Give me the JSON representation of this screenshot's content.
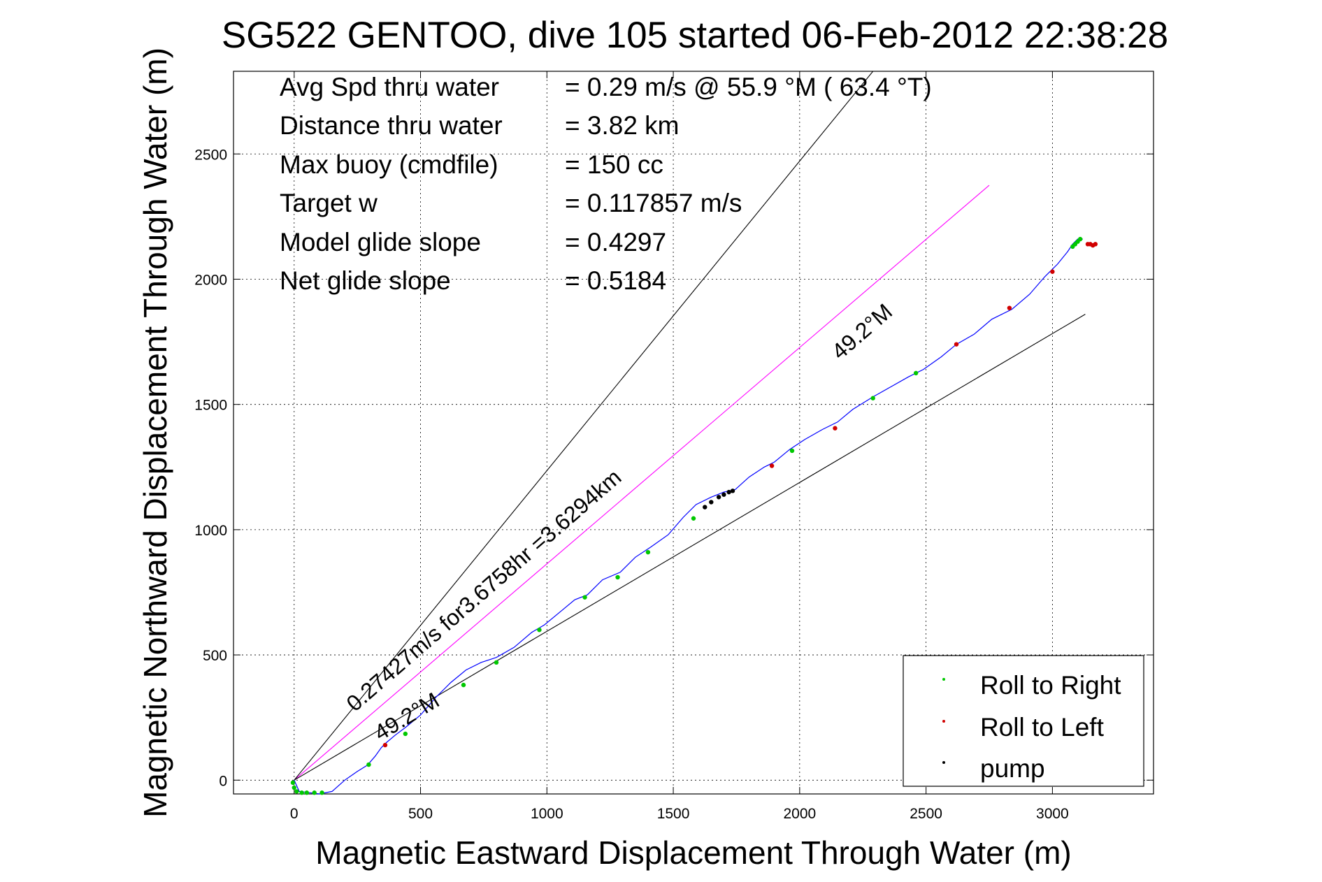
{
  "chart_data": {
    "type": "line",
    "title": "SG522 GENTOO, dive 105 started 06-Feb-2012 22:38:28",
    "xlabel": "Magnetic Eastward Displacement Through Water (m)",
    "ylabel": "Magnetic Northward Displacement Through Water (m)",
    "xlim": [
      -240,
      3400
    ],
    "ylim": [
      -55,
      2830
    ],
    "xticks": [
      0,
      500,
      1000,
      1500,
      2000,
      2500,
      3000
    ],
    "yticks": [
      0,
      500,
      1000,
      1500,
      2000,
      2500
    ],
    "grid": true,
    "info": {
      "labels": [
        "Avg Spd thru water",
        "Distance thru water",
        "Max buoy (cmdfile)",
        "Target w",
        "Model glide slope",
        "Net glide slope"
      ],
      "values": [
        "=  0.29 m/s @  55.9 °M ( 63.4 °T)",
        "=  3.82 km",
        "= 150 cc",
        "= 0.117857 m/s",
        "= 0.4297",
        "= 0.5184"
      ]
    },
    "reference_lines": [
      {
        "name": "heading",
        "color": "#ff00ff",
        "x": [
          0,
          2750
        ],
        "y": [
          0,
          2375
        ]
      },
      {
        "name": "bound-upper",
        "color": "#000000",
        "x": [
          0,
          2290
        ],
        "y": [
          0,
          2830
        ]
      },
      {
        "name": "bound-lower",
        "color": "#000000",
        "x": [
          0,
          3130
        ],
        "y": [
          0,
          1860
        ]
      }
    ],
    "annotations": [
      {
        "text": "0.27427m/s for3.6758hr =3.6294km",
        "x": 240,
        "y": 270,
        "angle": -41
      },
      {
        "text": "49.2°M",
        "x": 340,
        "y": 155,
        "angle": -31
      },
      {
        "text": "49.2°M",
        "x": 2160,
        "y": 1675,
        "angle": -41
      }
    ],
    "track": {
      "color": "#0000ff",
      "x": [
        0,
        20,
        60,
        100,
        150,
        200,
        250,
        290,
        320,
        345,
        365,
        400,
        440,
        500,
        560,
        620,
        680,
        740,
        800,
        870,
        940,
        990,
        1050,
        1110,
        1160,
        1220,
        1290,
        1350,
        1410,
        1480,
        1540,
        1590,
        1650,
        1700,
        1745,
        1800,
        1860,
        1900,
        1960,
        2020,
        2090,
        2150,
        2210,
        2290,
        2360,
        2430,
        2490,
        2560,
        2620,
        2690,
        2760,
        2840,
        2910,
        2970,
        3020,
        3060,
        3080,
        3100,
        3120
      ],
      "y": [
        0,
        -45,
        -50,
        -55,
        -45,
        0,
        35,
        60,
        95,
        130,
        150,
        180,
        210,
        260,
        330,
        390,
        440,
        470,
        490,
        530,
        590,
        620,
        670,
        720,
        740,
        800,
        830,
        890,
        930,
        980,
        1050,
        1100,
        1130,
        1150,
        1160,
        1210,
        1250,
        1270,
        1320,
        1360,
        1400,
        1430,
        1480,
        1530,
        1570,
        1610,
        1640,
        1690,
        1740,
        1780,
        1840,
        1880,
        1940,
        2010,
        2060,
        2110,
        2140,
        2160,
        2160
      ]
    },
    "series": [
      {
        "name": "Roll to Right",
        "color": "#00c800",
        "x": [
          -5,
          0,
          10,
          30,
          50,
          80,
          110,
          295,
          440,
          670,
          800,
          970,
          1150,
          1280,
          1400,
          1580,
          1970,
          2290,
          2460,
          3080,
          3090,
          3100,
          3110
        ],
        "y": [
          -10,
          -30,
          -45,
          -50,
          -50,
          -50,
          -50,
          62,
          185,
          380,
          470,
          600,
          730,
          810,
          910,
          1045,
          1315,
          1525,
          1625,
          2130,
          2140,
          2150,
          2160
        ]
      },
      {
        "name": "Roll to Left",
        "color": "#d10000",
        "x": [
          360,
          1890,
          2140,
          2620,
          2830,
          3000,
          3140,
          3150,
          3160,
          3170
        ],
        "y": [
          140,
          1255,
          1405,
          1740,
          1885,
          2030,
          2140,
          2140,
          2135,
          2140
        ]
      },
      {
        "name": "pump",
        "color": "#000000",
        "x": [
          1625,
          1650,
          1680,
          1700,
          1720,
          1735
        ],
        "y": [
          1090,
          1110,
          1130,
          1140,
          1150,
          1155
        ]
      }
    ],
    "legend_position": "bottom-right"
  }
}
